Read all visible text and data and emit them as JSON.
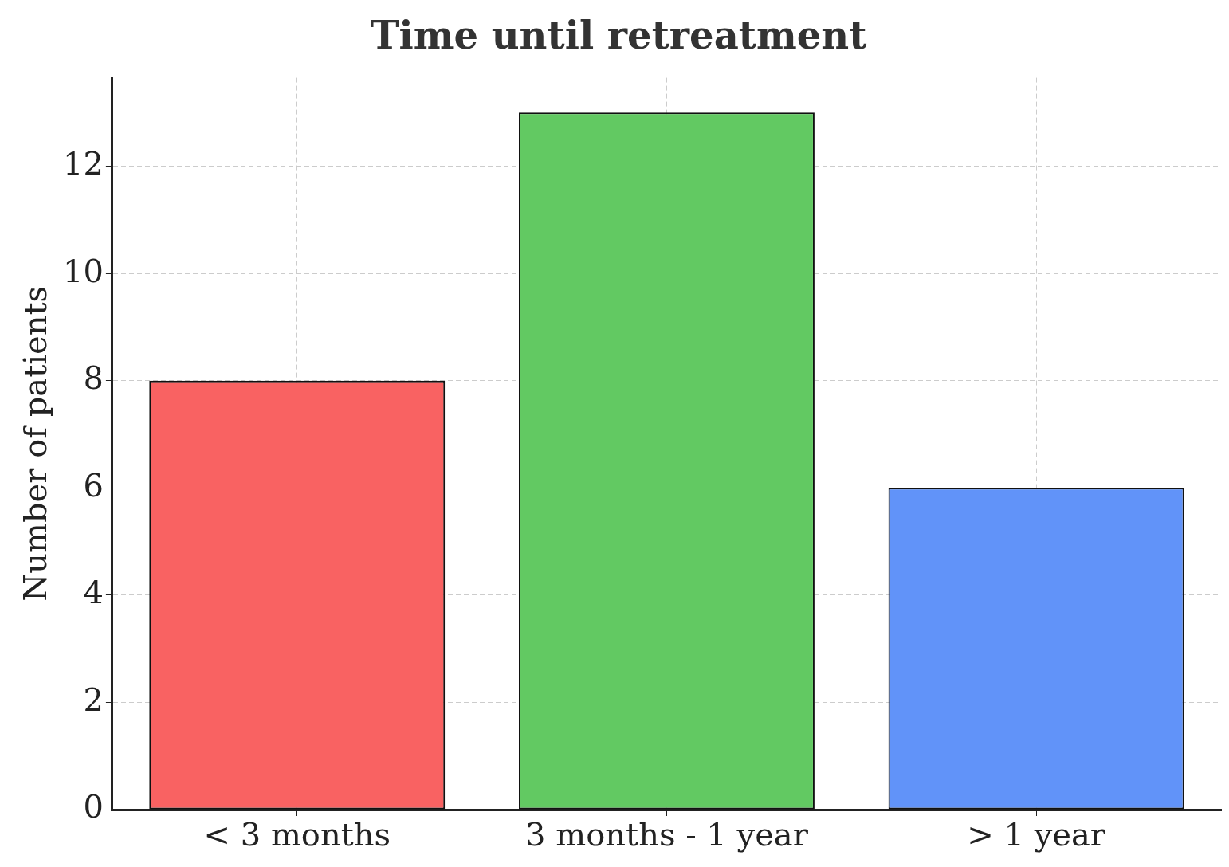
{
  "chart_data": {
    "type": "bar",
    "title": "Time until retreatment",
    "ylabel": "Number of patients",
    "categories": [
      "< 3 months",
      "3 months - 1 year",
      "> 1 year"
    ],
    "values": [
      8,
      13,
      6
    ],
    "colors": [
      "#f96262",
      "#62c962",
      "#6193f9"
    ],
    "ylim": [
      0,
      13.65
    ],
    "yticks": [
      0,
      2,
      4,
      6,
      8,
      10,
      12
    ],
    "grid": true
  }
}
